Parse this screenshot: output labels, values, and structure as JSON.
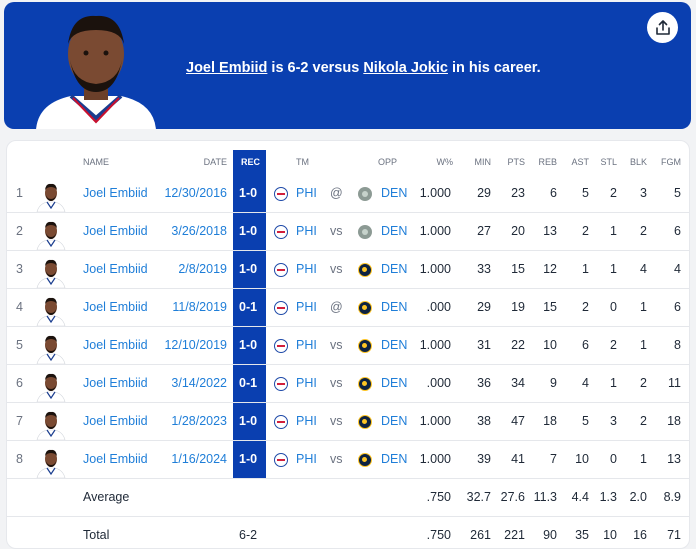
{
  "headline": {
    "player": "Joel Embiid",
    "mid": " is 6-2 versus ",
    "opponent": "Nikola Jokic",
    "tail": " in his career."
  },
  "columns": {
    "name": "NAME",
    "date": "DATE",
    "rec": "REC",
    "tm": "TM",
    "opp": "OPP",
    "wpct": "W%",
    "min": "MIN",
    "pts": "PTS",
    "reb": "REB",
    "ast": "AST",
    "stl": "STL",
    "blk": "BLK",
    "fgm": "FGM"
  },
  "rows": [
    {
      "n": "1",
      "name": "Joel Embiid",
      "date": "12/30/2016",
      "rec": "1-0",
      "tm": "PHI",
      "loc": "@",
      "opp": "DEN",
      "opp_logo": "nuggets-old-logo",
      "wpct": "1.000",
      "min": "29",
      "pts": "23",
      "reb": "6",
      "ast": "5",
      "stl": "2",
      "blk": "3",
      "fgm": "5"
    },
    {
      "n": "2",
      "name": "Joel Embiid",
      "date": "3/26/2018",
      "rec": "1-0",
      "tm": "PHI",
      "loc": "vs",
      "opp": "DEN",
      "opp_logo": "nuggets-old-logo",
      "wpct": "1.000",
      "min": "27",
      "pts": "20",
      "reb": "13",
      "ast": "2",
      "stl": "1",
      "blk": "2",
      "fgm": "6"
    },
    {
      "n": "3",
      "name": "Joel Embiid",
      "date": "2/8/2019",
      "rec": "1-0",
      "tm": "PHI",
      "loc": "vs",
      "opp": "DEN",
      "opp_logo": "nuggets-logo",
      "wpct": "1.000",
      "min": "33",
      "pts": "15",
      "reb": "12",
      "ast": "1",
      "stl": "1",
      "blk": "4",
      "fgm": "4"
    },
    {
      "n": "4",
      "name": "Joel Embiid",
      "date": "11/8/2019",
      "rec": "0-1",
      "tm": "PHI",
      "loc": "@",
      "opp": "DEN",
      "opp_logo": "nuggets-logo",
      "wpct": ".000",
      "min": "29",
      "pts": "19",
      "reb": "15",
      "ast": "2",
      "stl": "0",
      "blk": "1",
      "fgm": "6"
    },
    {
      "n": "5",
      "name": "Joel Embiid",
      "date": "12/10/2019",
      "rec": "1-0",
      "tm": "PHI",
      "loc": "vs",
      "opp": "DEN",
      "opp_logo": "nuggets-logo",
      "wpct": "1.000",
      "min": "31",
      "pts": "22",
      "reb": "10",
      "ast": "6",
      "stl": "2",
      "blk": "1",
      "fgm": "8"
    },
    {
      "n": "6",
      "name": "Joel Embiid",
      "date": "3/14/2022",
      "rec": "0-1",
      "tm": "PHI",
      "loc": "vs",
      "opp": "DEN",
      "opp_logo": "nuggets-logo",
      "wpct": ".000",
      "min": "36",
      "pts": "34",
      "reb": "9",
      "ast": "4",
      "stl": "1",
      "blk": "2",
      "fgm": "11"
    },
    {
      "n": "7",
      "name": "Joel Embiid",
      "date": "1/28/2023",
      "rec": "1-0",
      "tm": "PHI",
      "loc": "vs",
      "opp": "DEN",
      "opp_logo": "nuggets-logo",
      "wpct": "1.000",
      "min": "38",
      "pts": "47",
      "reb": "18",
      "ast": "5",
      "stl": "3",
      "blk": "2",
      "fgm": "18"
    },
    {
      "n": "8",
      "name": "Joel Embiid",
      "date": "1/16/2024",
      "rec": "1-0",
      "tm": "PHI",
      "loc": "vs",
      "opp": "DEN",
      "opp_logo": "nuggets-logo",
      "wpct": "1.000",
      "min": "39",
      "pts": "41",
      "reb": "7",
      "ast": "10",
      "stl": "0",
      "blk": "1",
      "fgm": "13"
    }
  ],
  "average": {
    "label": "Average",
    "rec": "",
    "wpct": ".750",
    "min": "32.7",
    "pts": "27.6",
    "reb": "11.3",
    "ast": "4.4",
    "stl": "1.3",
    "blk": "2.0",
    "fgm": "8.9"
  },
  "total": {
    "label": "Total",
    "rec": "6-2",
    "wpct": ".750",
    "min": "261",
    "pts": "221",
    "reb": "90",
    "ast": "35",
    "stl": "10",
    "blk": "16",
    "fgm": "71"
  },
  "colors": {
    "banner": "#0a3fb0",
    "link": "#1f7ed8",
    "rec_col": "#0a3fb0"
  },
  "icons": {
    "share": "share-icon",
    "team": "76ers-logo",
    "player": "player-avatar"
  }
}
